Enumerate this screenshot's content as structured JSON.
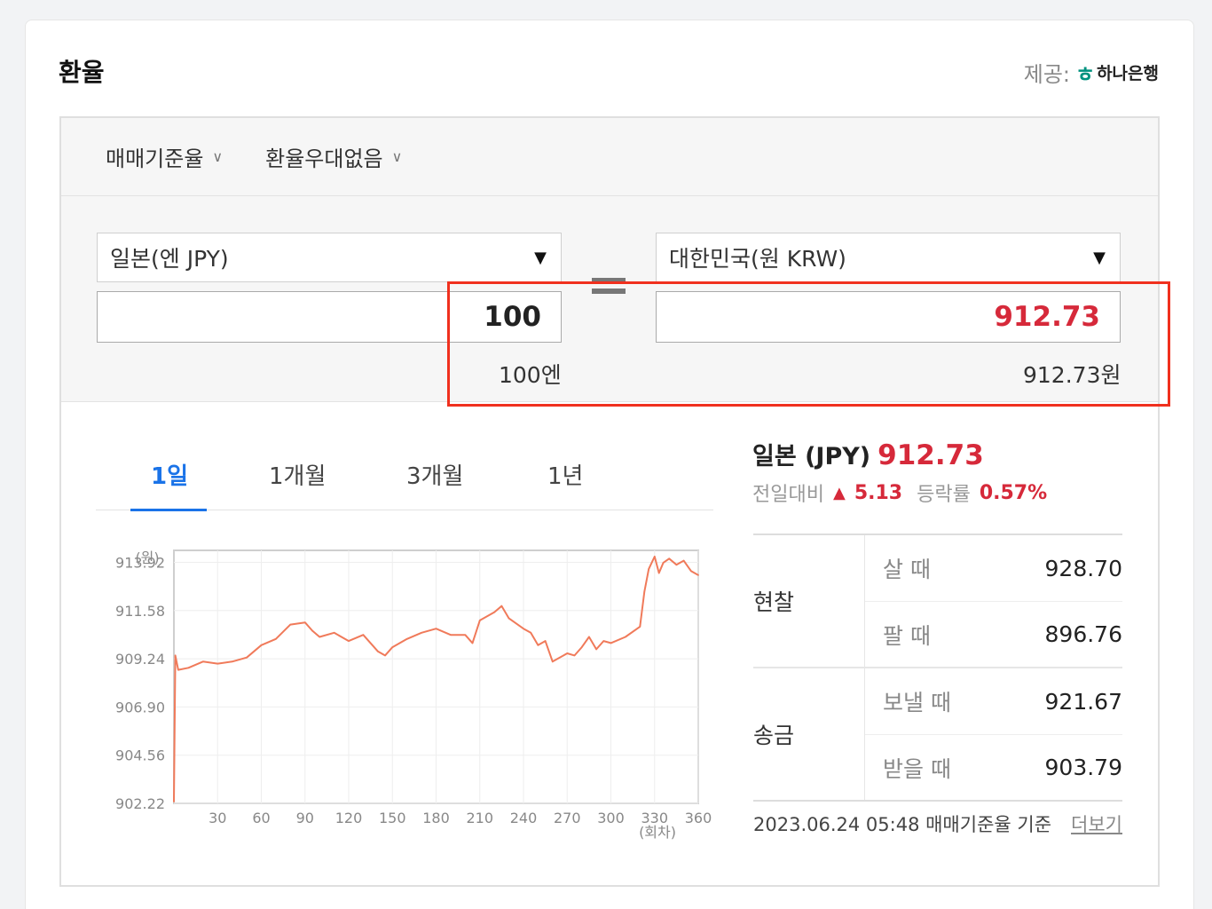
{
  "header": {
    "title": "환율",
    "provider_label": "제공:",
    "provider_name": "하나은행",
    "provider_icon": "hana-bank-logo-icon"
  },
  "options": {
    "rate_type": "매매기준율",
    "preferential": "환율우대없음"
  },
  "converter": {
    "from_currency": "일본(엔 JPY)",
    "to_currency": "대한민국(원 KRW)",
    "from_amount": "100",
    "to_amount": "912.73",
    "from_caption": "100엔",
    "to_caption": "912.73원",
    "highlight_color": "#f0301e",
    "result_color": "#d6293a"
  },
  "tabs": [
    {
      "label": "1일",
      "active": true
    },
    {
      "label": "1개월",
      "active": false
    },
    {
      "label": "3개월",
      "active": false
    },
    {
      "label": "1년",
      "active": false
    }
  ],
  "summary": {
    "currency": "일본 (JPY)",
    "value": "912.73",
    "change_label": "전일대비",
    "change_value": "5.13",
    "rate_label": "등락률",
    "rate_value": "0.57%"
  },
  "rates": {
    "cash": {
      "label": "현찰",
      "buy_label": "살 때",
      "buy": "928.70",
      "sell_label": "팔 때",
      "sell": "896.76"
    },
    "remit": {
      "label": "송금",
      "send_label": "보낼 때",
      "send": "921.67",
      "receive_label": "받을 때",
      "receive": "903.79"
    }
  },
  "footnote": {
    "text": "2023.06.24 05:48  매매기준율 기준",
    "more": "더보기"
  },
  "chart_data": {
    "type": "line",
    "ylabel": "(원)",
    "xlabel": "(회차)",
    "y_ticks": [
      "913.92",
      "911.58",
      "909.24",
      "906.90",
      "904.56",
      "902.22"
    ],
    "x_ticks": [
      "30",
      "60",
      "90",
      "120",
      "150",
      "180",
      "210",
      "240",
      "270",
      "300",
      "330",
      "360"
    ],
    "ylim": [
      902.22,
      914.5
    ],
    "xlim": [
      0,
      360
    ],
    "color": "#f07a5a",
    "series": [
      {
        "x": [
          0,
          1,
          3,
          10,
          20,
          30,
          40,
          50,
          60,
          70,
          80,
          90,
          95,
          100,
          110,
          120,
          130,
          140,
          145,
          150,
          160,
          170,
          180,
          190,
          200,
          205,
          210,
          220,
          225,
          230,
          240,
          245,
          250,
          255,
          260,
          270,
          275,
          280,
          285,
          290,
          295,
          300,
          310,
          320,
          323,
          326,
          330,
          333,
          336,
          340,
          345,
          350,
          355,
          360
        ],
        "y": [
          902.3,
          909.4,
          908.7,
          908.8,
          909.1,
          909.0,
          909.1,
          909.3,
          909.9,
          910.2,
          910.9,
          911.0,
          910.6,
          910.3,
          910.5,
          910.1,
          910.4,
          909.6,
          909.4,
          909.8,
          910.2,
          910.5,
          910.7,
          910.4,
          910.4,
          910.0,
          911.1,
          911.5,
          911.8,
          911.2,
          910.7,
          910.5,
          909.9,
          910.1,
          909.1,
          909.5,
          909.4,
          909.8,
          910.3,
          909.7,
          910.1,
          910.0,
          910.3,
          910.8,
          912.5,
          913.6,
          914.2,
          913.4,
          913.9,
          914.1,
          913.8,
          914.0,
          913.5,
          913.3
        ]
      }
    ]
  }
}
